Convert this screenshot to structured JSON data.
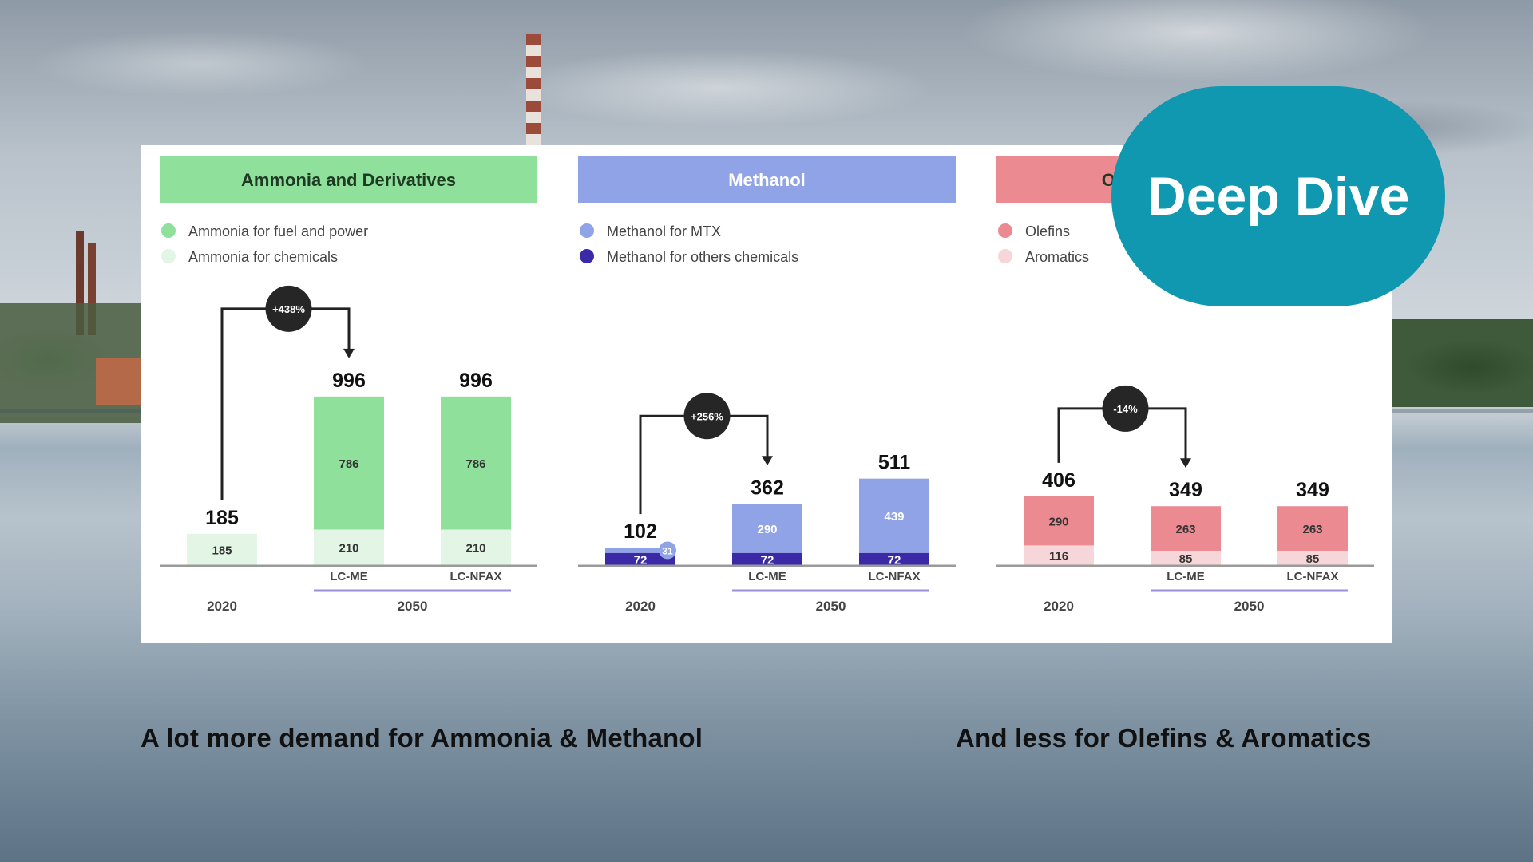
{
  "badge": {
    "label": "Deep Dive",
    "color": "#0f98b0"
  },
  "captions": {
    "left": "A lot more demand for Ammonia & Methanol",
    "right": "And less for Olefins & Aromatics"
  },
  "chart_data": [
    {
      "type": "bar",
      "stacked": true,
      "title": "Ammonia and Derivatives",
      "header_color": "#8ee09a",
      "categories": [
        "2020",
        "LC-ME",
        "LC-NFAX"
      ],
      "period_labels": {
        "start": "2020",
        "end": "2050"
      },
      "series": [
        {
          "name": "Ammonia for chemicals",
          "values": [
            185,
            210,
            210
          ],
          "color": "#e3f6e6",
          "label_color": "#333333"
        },
        {
          "name": "Ammonia for fuel and power",
          "values": [
            0,
            786,
            786
          ],
          "color": "#8ee09a",
          "label_color": "#333333"
        }
      ],
      "legend": [
        {
          "name": "Ammonia for fuel and power",
          "color": "#8ee09a"
        },
        {
          "name": "Ammonia for chemicals",
          "color": "#e3f6e6"
        }
      ],
      "totals": [
        185,
        996,
        996
      ],
      "change": {
        "label": "+438%",
        "from": 0,
        "to": 1
      },
      "ylim": [
        0,
        1000
      ]
    },
    {
      "type": "bar",
      "stacked": true,
      "title": "Methanol",
      "header_color": "#8fa3e6",
      "categories": [
        "2020",
        "LC-ME",
        "LC-NFAX"
      ],
      "period_labels": {
        "start": "2020",
        "end": "2050"
      },
      "series": [
        {
          "name": "Methanol for others chemicals",
          "values": [
            72,
            72,
            72
          ],
          "color": "#3a2aa8",
          "label_color": "#ffffff"
        },
        {
          "name": "Methanol for MTX",
          "values": [
            31,
            290,
            439
          ],
          "color": "#8fa3e6",
          "label_color": "#ffffff"
        }
      ],
      "legend": [
        {
          "name": "Methanol for MTX",
          "color": "#8fa3e6"
        },
        {
          "name": "Methanol for others chemicals",
          "color": "#3a2aa8"
        }
      ],
      "totals": [
        102,
        362,
        511
      ],
      "change": {
        "label": "+256%",
        "from": 0,
        "to": 1
      },
      "ylim": [
        0,
        1000
      ]
    },
    {
      "type": "bar",
      "stacked": true,
      "title": "Olefins & Aromatics",
      "header_color": "#ec8a92",
      "categories": [
        "2020",
        "LC-ME",
        "LC-NFAX"
      ],
      "period_labels": {
        "start": "2020",
        "end": "2050"
      },
      "series": [
        {
          "name": "Aromatics",
          "values": [
            116,
            85,
            85
          ],
          "color": "#f7d6da",
          "label_color": "#333333"
        },
        {
          "name": "Olefins",
          "values": [
            290,
            263,
            263
          ],
          "color": "#ec8a92",
          "label_color": "#333333"
        }
      ],
      "legend": [
        {
          "name": "Olefins",
          "color": "#ec8a92"
        },
        {
          "name": "Aromatics",
          "color": "#f7d6da"
        }
      ],
      "totals": [
        406,
        349,
        349
      ],
      "change": {
        "label": "-14%",
        "from": 0,
        "to": 1
      },
      "ylim": [
        0,
        1000
      ]
    }
  ]
}
